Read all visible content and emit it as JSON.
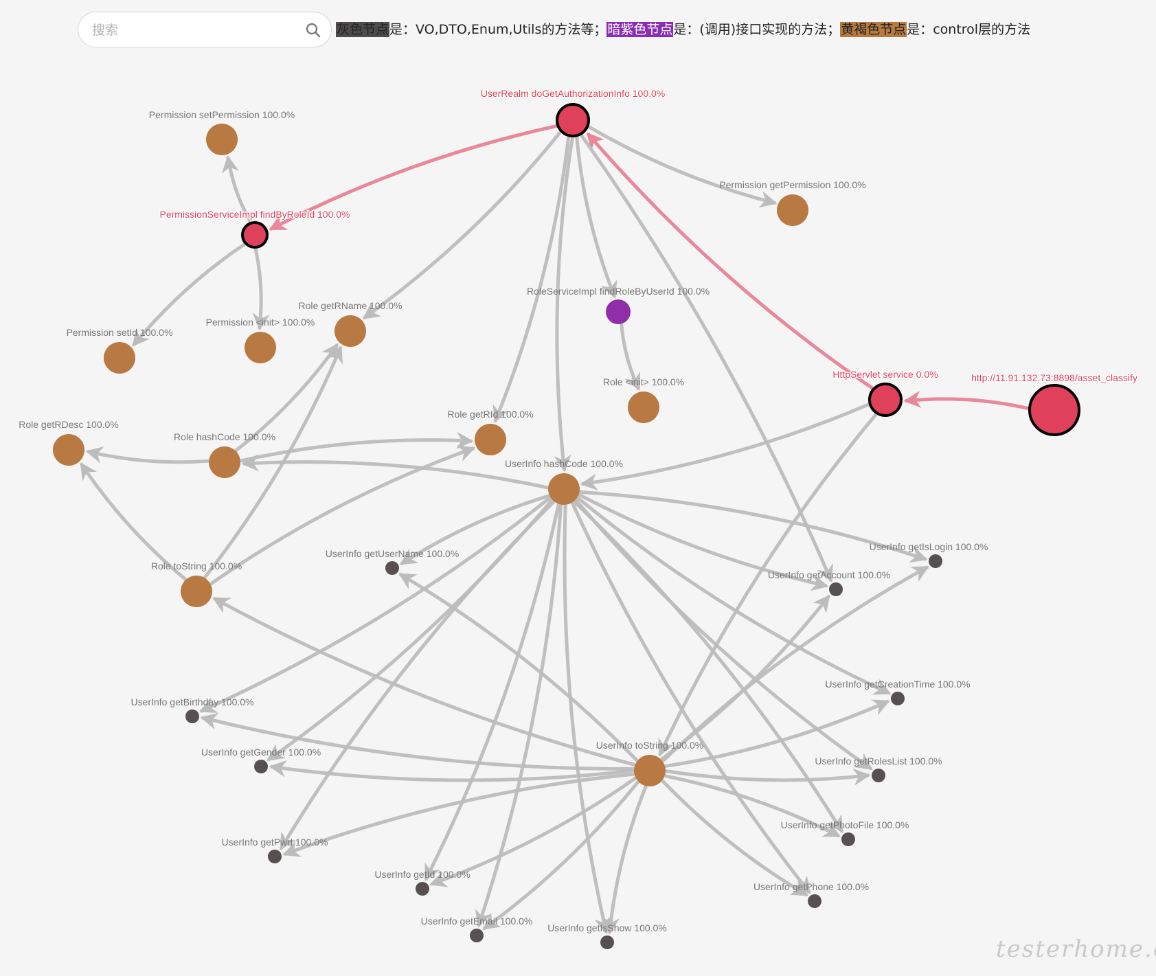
{
  "search": {
    "placeholder": "搜索",
    "value": ""
  },
  "legend": {
    "items": [
      {
        "swatch": "灰色节点",
        "color": "#4d4b4b",
        "text_color": "#222222",
        "suffix": "是：VO,DTO,Enum,Utils的方法等；"
      },
      {
        "swatch": "暗紫色节点",
        "color": "#8a2db5",
        "text_color": "#ffffff",
        "suffix": "是：(调用)接口实现的方法；"
      },
      {
        "swatch": "黄褐色节点",
        "color": "#b87a40",
        "text_color": "#222222",
        "suffix": "是：control层的方法"
      }
    ]
  },
  "colors": {
    "gray": "#575051",
    "purple": "#8f2ea8",
    "brown": "#b87942",
    "red": "#e0415a",
    "gray_edge": "#bcbcbc",
    "red_edge": "#e8889a",
    "label_gray": "#777777",
    "label_red": "#e0415a"
  },
  "graph": {
    "nodes": [
      {
        "id": "n_url",
        "label": "http://11.91.132.73:8898/asset_classify",
        "type": "red",
        "size": "xlarge",
        "highlighted": true
      },
      {
        "id": "n_servlet",
        "label": "HttpServlet service 0.0%",
        "type": "red",
        "size": "large",
        "highlighted": true
      },
      {
        "id": "n_realm",
        "label": "UserRealm doGetAuthorizationInfo 100.0%",
        "type": "red",
        "size": "large",
        "highlighted": true
      },
      {
        "id": "n_permsvc",
        "label": "PermissionServiceImpl findByRoleId 100.0%",
        "type": "red",
        "size": "medium",
        "highlighted": true
      },
      {
        "id": "n_perm_set",
        "label": "Permission setPermission 100.0%",
        "type": "brown",
        "size": "large"
      },
      {
        "id": "n_perm_get",
        "label": "Permission getPermission 100.0%",
        "type": "brown",
        "size": "large"
      },
      {
        "id": "n_perm_setid",
        "label": "Permission setId 100.0%",
        "type": "brown",
        "size": "large"
      },
      {
        "id": "n_perm_init",
        "label": "Permission <init> 100.0%",
        "type": "brown",
        "size": "large"
      },
      {
        "id": "n_role_getrname",
        "label": "Role getRName 100.0%",
        "type": "brown",
        "size": "large"
      },
      {
        "id": "n_rolesvc",
        "label": "RoleServiceImpl findRoleByUserId 100.0%",
        "type": "purple",
        "size": "medium"
      },
      {
        "id": "n_role_init",
        "label": "Role <init> 100.0%",
        "type": "brown",
        "size": "large"
      },
      {
        "id": "n_role_getrid",
        "label": "Role getRId 100.0%",
        "type": "brown",
        "size": "large"
      },
      {
        "id": "n_role_getrdesc",
        "label": "Role getRDesc 100.0%",
        "type": "brown",
        "size": "large"
      },
      {
        "id": "n_role_hash",
        "label": "Role hashCode 100.0%",
        "type": "brown",
        "size": "large"
      },
      {
        "id": "n_ui_hash",
        "label": "UserInfo hashCode 100.0%",
        "type": "brown",
        "size": "large"
      },
      {
        "id": "n_role_tostr",
        "label": "Role toString 100.0%",
        "type": "brown",
        "size": "large"
      },
      {
        "id": "n_ui_username",
        "label": "UserInfo getUserName 100.0%",
        "type": "gray",
        "size": "small"
      },
      {
        "id": "n_ui_islogin",
        "label": "UserInfo getIsLogin 100.0%",
        "type": "gray",
        "size": "small"
      },
      {
        "id": "n_ui_account",
        "label": "UserInfo getAccount 100.0%",
        "type": "gray",
        "size": "small"
      },
      {
        "id": "n_ui_birthday",
        "label": "UserInfo getBirthday 100.0%",
        "type": "gray",
        "size": "small"
      },
      {
        "id": "n_ui_creation",
        "label": "UserInfo getCreationTime 100.0%",
        "type": "gray",
        "size": "small"
      },
      {
        "id": "n_ui_tostr",
        "label": "UserInfo toString 100.0%",
        "type": "brown",
        "size": "large"
      },
      {
        "id": "n_ui_gender",
        "label": "UserInfo getGender 100.0%",
        "type": "gray",
        "size": "small"
      },
      {
        "id": "n_ui_roles",
        "label": "UserInfo getRolesList 100.0%",
        "type": "gray",
        "size": "small"
      },
      {
        "id": "n_ui_photo",
        "label": "UserInfo getPhotoFile 100.0%",
        "type": "gray",
        "size": "small"
      },
      {
        "id": "n_ui_pwd",
        "label": "UserInfo getPwd 100.0%",
        "type": "gray",
        "size": "small"
      },
      {
        "id": "n_ui_id",
        "label": "UserInfo getId 100.0%",
        "type": "gray",
        "size": "small"
      },
      {
        "id": "n_ui_phone",
        "label": "UserInfo getPhone 100.0%",
        "type": "gray",
        "size": "small"
      },
      {
        "id": "n_ui_email",
        "label": "UserInfo getEmail 100.0%",
        "type": "gray",
        "size": "small"
      },
      {
        "id": "n_ui_isshow",
        "label": "UserInfo getIsShow 100.0%",
        "type": "gray",
        "size": "small"
      }
    ],
    "edges": [
      {
        "from": "n_url",
        "to": "n_servlet",
        "highlighted": true
      },
      {
        "from": "n_servlet",
        "to": "n_realm",
        "highlighted": true
      },
      {
        "from": "n_realm",
        "to": "n_permsvc",
        "highlighted": true
      },
      {
        "from": "n_permsvc",
        "to": "n_perm_set"
      },
      {
        "from": "n_permsvc",
        "to": "n_perm_setid"
      },
      {
        "from": "n_permsvc",
        "to": "n_perm_init"
      },
      {
        "from": "n_realm",
        "to": "n_perm_get"
      },
      {
        "from": "n_realm",
        "to": "n_role_getrname"
      },
      {
        "from": "n_realm",
        "to": "n_rolesvc"
      },
      {
        "from": "n_realm",
        "to": "n_role_getrid"
      },
      {
        "from": "n_realm",
        "to": "n_ui_hash"
      },
      {
        "from": "n_realm",
        "to": "n_ui_account"
      },
      {
        "from": "n_rolesvc",
        "to": "n_role_init"
      },
      {
        "from": "n_servlet",
        "to": "n_ui_hash"
      },
      {
        "from": "n_servlet",
        "to": "n_ui_tostr"
      },
      {
        "from": "n_role_hash",
        "to": "n_role_getrdesc"
      },
      {
        "from": "n_role_hash",
        "to": "n_role_getrname"
      },
      {
        "from": "n_role_hash",
        "to": "n_role_getrid"
      },
      {
        "from": "n_ui_hash",
        "to": "n_role_hash"
      },
      {
        "from": "n_role_tostr",
        "to": "n_role_getrdesc"
      },
      {
        "from": "n_role_tostr",
        "to": "n_role_getrname"
      },
      {
        "from": "n_role_tostr",
        "to": "n_role_getrid"
      },
      {
        "from": "n_ui_hash",
        "to": "n_ui_username"
      },
      {
        "from": "n_ui_hash",
        "to": "n_ui_islogin"
      },
      {
        "from": "n_ui_hash",
        "to": "n_ui_account"
      },
      {
        "from": "n_ui_hash",
        "to": "n_ui_birthday"
      },
      {
        "from": "n_ui_hash",
        "to": "n_ui_creation"
      },
      {
        "from": "n_ui_hash",
        "to": "n_ui_gender"
      },
      {
        "from": "n_ui_hash",
        "to": "n_ui_roles"
      },
      {
        "from": "n_ui_hash",
        "to": "n_ui_photo"
      },
      {
        "from": "n_ui_hash",
        "to": "n_ui_pwd"
      },
      {
        "from": "n_ui_hash",
        "to": "n_ui_id"
      },
      {
        "from": "n_ui_hash",
        "to": "n_ui_phone"
      },
      {
        "from": "n_ui_hash",
        "to": "n_ui_email"
      },
      {
        "from": "n_ui_hash",
        "to": "n_ui_isshow"
      },
      {
        "from": "n_ui_tostr",
        "to": "n_role_tostr"
      },
      {
        "from": "n_ui_tostr",
        "to": "n_ui_username"
      },
      {
        "from": "n_ui_tostr",
        "to": "n_ui_islogin"
      },
      {
        "from": "n_ui_tostr",
        "to": "n_ui_account"
      },
      {
        "from": "n_ui_tostr",
        "to": "n_ui_birthday"
      },
      {
        "from": "n_ui_tostr",
        "to": "n_ui_creation"
      },
      {
        "from": "n_ui_tostr",
        "to": "n_ui_gender"
      },
      {
        "from": "n_ui_tostr",
        "to": "n_ui_roles"
      },
      {
        "from": "n_ui_tostr",
        "to": "n_ui_photo"
      },
      {
        "from": "n_ui_tostr",
        "to": "n_ui_pwd"
      },
      {
        "from": "n_ui_tostr",
        "to": "n_ui_id"
      },
      {
        "from": "n_ui_tostr",
        "to": "n_ui_phone"
      },
      {
        "from": "n_ui_tostr",
        "to": "n_ui_email"
      },
      {
        "from": "n_ui_tostr",
        "to": "n_ui_isshow"
      }
    ]
  },
  "watermark": "testerhome.com"
}
